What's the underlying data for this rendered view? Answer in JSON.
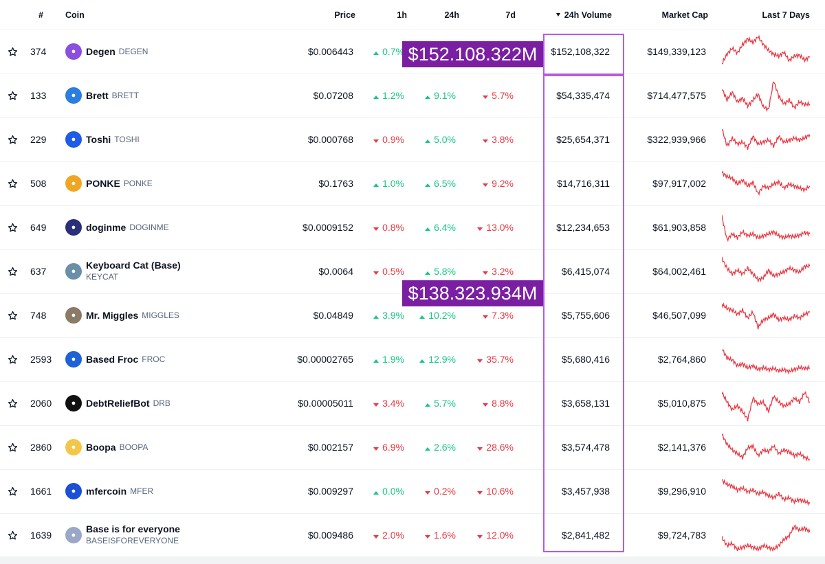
{
  "header": {
    "rank": "#",
    "coin": "Coin",
    "price": "Price",
    "h1": "1h",
    "h24": "24h",
    "d7": "7d",
    "volume": "24h Volume",
    "market_cap": "Market Cap",
    "last7": "Last 7 Days",
    "sort_icon": "caret-down-icon"
  },
  "banners": {
    "top": "$152.108.322M",
    "middle": "$138.323.934M"
  },
  "colors": {
    "up": "#16c784",
    "down": "#ea3943",
    "highlight": "#b659e6",
    "banner": "#7b1fa2"
  },
  "rows": [
    {
      "rank": "374",
      "name": "Degen",
      "symbol": "DEGEN",
      "price": "$0.006443",
      "h1": "0.7%",
      "h1_dir": "up",
      "h24": "",
      "h24_dir": "up",
      "d7": "",
      "d7_dir": "up",
      "volume": "$152,108,322",
      "market_cap": "$149,339,123",
      "icon": "degen-hat-icon",
      "icon_color": "#8a4fe0"
    },
    {
      "rank": "133",
      "name": "Brett",
      "symbol": "BRETT",
      "price": "$0.07208",
      "h1": "1.2%",
      "h1_dir": "up",
      "h24": "9.1%",
      "h24_dir": "up",
      "d7": "5.7%",
      "d7_dir": "down",
      "volume": "$54,335,474",
      "market_cap": "$714,477,575",
      "icon": "brett-icon",
      "icon_color": "#2a7de1"
    },
    {
      "rank": "229",
      "name": "Toshi",
      "symbol": "TOSHI",
      "price": "$0.000768",
      "h1": "0.9%",
      "h1_dir": "down",
      "h24": "5.0%",
      "h24_dir": "up",
      "d7": "3.8%",
      "d7_dir": "down",
      "volume": "$25,654,371",
      "market_cap": "$322,939,966",
      "icon": "toshi-cat-icon",
      "icon_color": "#1d5ce6"
    },
    {
      "rank": "508",
      "name": "PONKE",
      "symbol": "PONKE",
      "price": "$0.1763",
      "h1": "1.0%",
      "h1_dir": "up",
      "h24": "6.5%",
      "h24_dir": "up",
      "d7": "9.2%",
      "d7_dir": "down",
      "volume": "$14,716,311",
      "market_cap": "$97,917,002",
      "icon": "ponke-monkey-icon",
      "icon_color": "#f1a623"
    },
    {
      "rank": "649",
      "name": "doginme",
      "symbol": "DOGINME",
      "price": "$0.0009152",
      "h1": "0.8%",
      "h1_dir": "down",
      "h24": "6.4%",
      "h24_dir": "up",
      "d7": "13.0%",
      "d7_dir": "down",
      "volume": "$12,234,653",
      "market_cap": "$61,903,858",
      "icon": "doginme-dog-icon",
      "icon_color": "#2b2f7a"
    },
    {
      "rank": "637",
      "name": "Keyboard Cat (Base)",
      "symbol": "KEYCAT",
      "price": "$0.0064",
      "h1": "0.5%",
      "h1_dir": "down",
      "h24": "5.8%",
      "h24_dir": "up",
      "d7": "3.2%",
      "d7_dir": "down",
      "volume": "$6,415,074",
      "market_cap": "$64,002,461",
      "icon": "keyboard-cat-icon",
      "icon_color": "#6b8fa8"
    },
    {
      "rank": "748",
      "name": "Mr. Miggles",
      "symbol": "MIGGLES",
      "price": "$0.04849",
      "h1": "3.9%",
      "h1_dir": "up",
      "h24": "10.2%",
      "h24_dir": "up",
      "d7": "7.3%",
      "d7_dir": "down",
      "volume": "$5,755,606",
      "market_cap": "$46,507,099",
      "icon": "miggles-cat-icon",
      "icon_color": "#8a7a66"
    },
    {
      "rank": "2593",
      "name": "Based Froc",
      "symbol": "FROC",
      "price": "$0.00002765",
      "h1": "1.9%",
      "h1_dir": "up",
      "h24": "12.9%",
      "h24_dir": "up",
      "d7": "35.7%",
      "d7_dir": "down",
      "volume": "$5,680,416",
      "market_cap": "$2,764,860",
      "icon": "froc-frog-icon",
      "icon_color": "#1e63d6"
    },
    {
      "rank": "2060",
      "name": "DebtReliefBot",
      "symbol": "DRB",
      "price": "$0.00005011",
      "h1": "3.4%",
      "h1_dir": "down",
      "h24": "5.7%",
      "h24_dir": "up",
      "d7": "8.8%",
      "d7_dir": "down",
      "volume": "$3,658,131",
      "market_cap": "$5,010,875",
      "icon": "drb-bot-icon",
      "icon_color": "#111111"
    },
    {
      "rank": "2860",
      "name": "Boopa",
      "symbol": "BOOPA",
      "price": "$0.002157",
      "h1": "6.9%",
      "h1_dir": "down",
      "h24": "2.6%",
      "h24_dir": "up",
      "d7": "28.6%",
      "d7_dir": "down",
      "volume": "$3,574,478",
      "market_cap": "$2,141,376",
      "icon": "boopa-dog-icon",
      "icon_color": "#f3c64a"
    },
    {
      "rank": "1661",
      "name": "mfercoin",
      "symbol": "MFER",
      "price": "$0.009297",
      "h1": "0.0%",
      "h1_dir": "up",
      "h24": "0.2%",
      "h24_dir": "down",
      "d7": "10.6%",
      "d7_dir": "down",
      "volume": "$3,457,938",
      "market_cap": "$9,296,910",
      "icon": "mfer-icon",
      "icon_color": "#1a4fd6"
    },
    {
      "rank": "1639",
      "name": "Base is for everyone",
      "symbol": "BASEISFOREVERYONE",
      "price": "$0.009486",
      "h1": "2.0%",
      "h1_dir": "down",
      "h24": "1.6%",
      "h24_dir": "down",
      "d7": "12.0%",
      "d7_dir": "down",
      "volume": "$2,841,482",
      "market_cap": "$9,724,783",
      "icon": "base-everyone-icon",
      "icon_color": "#9aa8c8"
    }
  ],
  "sparklines": [
    [
      0.8,
      0.55,
      0.4,
      0.52,
      0.3,
      0.15,
      0.25,
      0.1,
      0.3,
      0.45,
      0.55,
      0.6,
      0.5,
      0.72,
      0.6,
      0.58,
      0.7,
      0.62
    ],
    [
      0.3,
      0.6,
      0.4,
      0.65,
      0.55,
      0.75,
      0.6,
      0.45,
      0.78,
      0.85,
      0.1,
      0.5,
      0.7,
      0.6,
      0.8,
      0.65,
      0.72,
      0.7
    ],
    [
      0.2,
      0.65,
      0.45,
      0.6,
      0.55,
      0.7,
      0.4,
      0.6,
      0.55,
      0.5,
      0.65,
      0.4,
      0.55,
      0.5,
      0.45,
      0.5,
      0.45,
      0.35
    ],
    [
      0.2,
      0.3,
      0.35,
      0.5,
      0.4,
      0.55,
      0.45,
      0.75,
      0.55,
      0.6,
      0.5,
      0.45,
      0.6,
      0.5,
      0.55,
      0.6,
      0.65,
      0.55
    ],
    [
      0.2,
      0.8,
      0.65,
      0.75,
      0.6,
      0.7,
      0.65,
      0.75,
      0.7,
      0.65,
      0.6,
      0.7,
      0.75,
      0.7,
      0.72,
      0.68,
      0.62,
      0.65
    ],
    [
      0.15,
      0.4,
      0.55,
      0.45,
      0.55,
      0.4,
      0.55,
      0.7,
      0.65,
      0.45,
      0.6,
      0.55,
      0.5,
      0.4,
      0.45,
      0.5,
      0.35,
      0.35
    ],
    [
      0.2,
      0.3,
      0.35,
      0.45,
      0.35,
      0.55,
      0.4,
      0.8,
      0.6,
      0.55,
      0.45,
      0.6,
      0.55,
      0.6,
      0.5,
      0.55,
      0.45,
      0.4
    ],
    [
      0.2,
      0.45,
      0.5,
      0.65,
      0.6,
      0.7,
      0.65,
      0.75,
      0.7,
      0.75,
      0.72,
      0.78,
      0.75,
      0.8,
      0.75,
      0.7,
      0.72,
      0.7
    ],
    [
      0.2,
      0.45,
      0.65,
      0.55,
      0.7,
      0.9,
      0.35,
      0.5,
      0.45,
      0.7,
      0.3,
      0.45,
      0.55,
      0.5,
      0.35,
      0.45,
      0.2,
      0.45
    ],
    [
      0.15,
      0.4,
      0.55,
      0.65,
      0.75,
      0.5,
      0.45,
      0.7,
      0.55,
      0.6,
      0.45,
      0.65,
      0.55,
      0.6,
      0.7,
      0.65,
      0.75,
      0.8
    ],
    [
      0.2,
      0.3,
      0.35,
      0.45,
      0.4,
      0.5,
      0.45,
      0.55,
      0.5,
      0.6,
      0.65,
      0.55,
      0.7,
      0.65,
      0.75,
      0.7,
      0.75,
      0.8
    ],
    [
      0.55,
      0.75,
      0.7,
      0.85,
      0.8,
      0.75,
      0.8,
      0.85,
      0.75,
      0.8,
      0.85,
      0.75,
      0.6,
      0.5,
      0.25,
      0.35,
      0.3,
      0.4
    ]
  ]
}
